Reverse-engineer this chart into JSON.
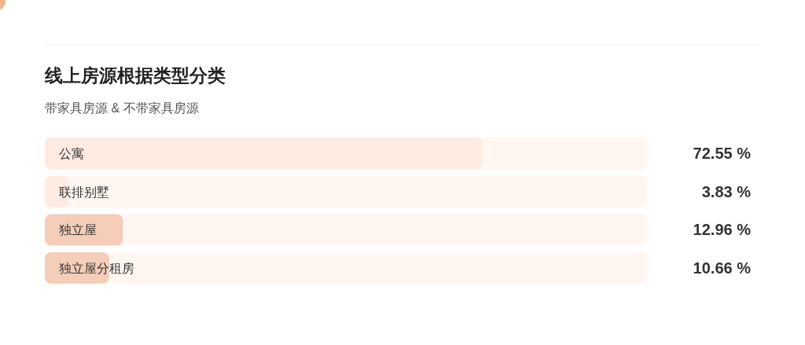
{
  "chart_data": {
    "type": "bar",
    "orientation": "horizontal",
    "title": "线上房源根据类型分类",
    "subtitle": "带家具房源 & 不带家具房源",
    "categories": [
      "公寓",
      "联排别墅",
      "独立屋",
      "独立屋分租房"
    ],
    "values": [
      72.55,
      3.83,
      12.96,
      10.66
    ],
    "colors": [
      "#fdeae1",
      "#fdeae1",
      "#f5cdb9",
      "#f5cdb9"
    ],
    "xlim": [
      0,
      100
    ],
    "value_labels": [
      "72.55 %",
      "3.83 %",
      "12.96 %",
      "10.66 %"
    ],
    "tick_labels": "y"
  }
}
